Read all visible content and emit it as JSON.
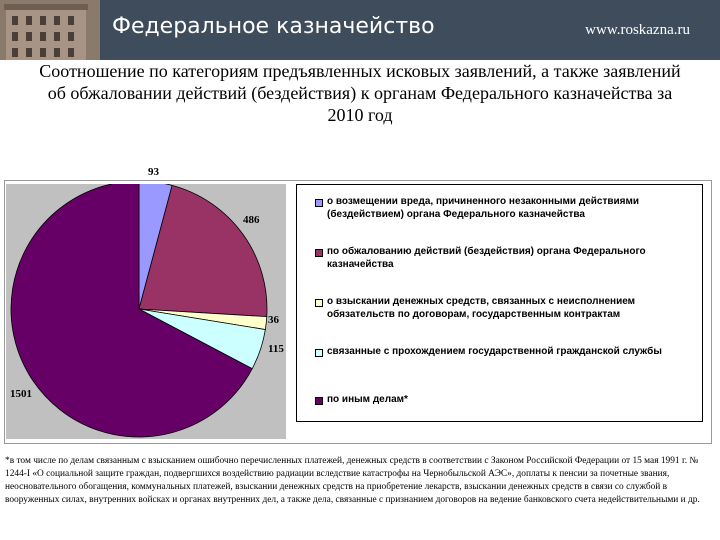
{
  "header": {
    "title": "Федеральное казначейство",
    "url": "www.roskazna.ru"
  },
  "chart_data": {
    "type": "pie",
    "title": "Соотношение по категориям предъявленных исковых заявлений, а также заявлений об обжаловании действий (бездействия) к органам Федерального казначейства за 2010 год",
    "series": [
      {
        "name": "о возмещении вреда, причиненного незаконными действиями (бездействием) органа Федерального казначейства",
        "value": 93,
        "label": "93",
        "color": "#9999ff"
      },
      {
        "name": "по обжалованию действий (бездействия) органа Федерального казначейства",
        "value": 486,
        "label": "486",
        "color": "#993366"
      },
      {
        "name": "о взыскании денежных средств, связанных с неисполнением обязательств по договорам, государственным контрактам",
        "value": 36,
        "label": "36",
        "color": "#ffffcc"
      },
      {
        "name": "связанные с прохождением государственной гражданской службы",
        "value": 115,
        "label": "115",
        "color": "#ccffff"
      },
      {
        "name": "по иным делам*",
        "value": 1501,
        "label": "1501",
        "color": "#660066"
      }
    ],
    "legend": "right"
  },
  "footnote": "*в том числе по делам связанным с взысканием ошибочно перечисленных платежей, денежных средств в соответствии с Законом Российской Федерации от 15 мая 1991 г. № 1244-I «О социальной защите граждан, подвергшихся воздействию радиации вследствие катастрофы на Чернобыльской АЭС», доплаты к пенсии за почетные звания, неосновательного обогащения, коммунальных платежей, взыскании денежных средств на приобретение лекарств, взыскании денежных средств в связи со службой в вооруженных силах, внутренних войсках и органах внутренних дел, а также дела, связанные с признанием договоров на ведение банковского счета недействительными и др."
}
